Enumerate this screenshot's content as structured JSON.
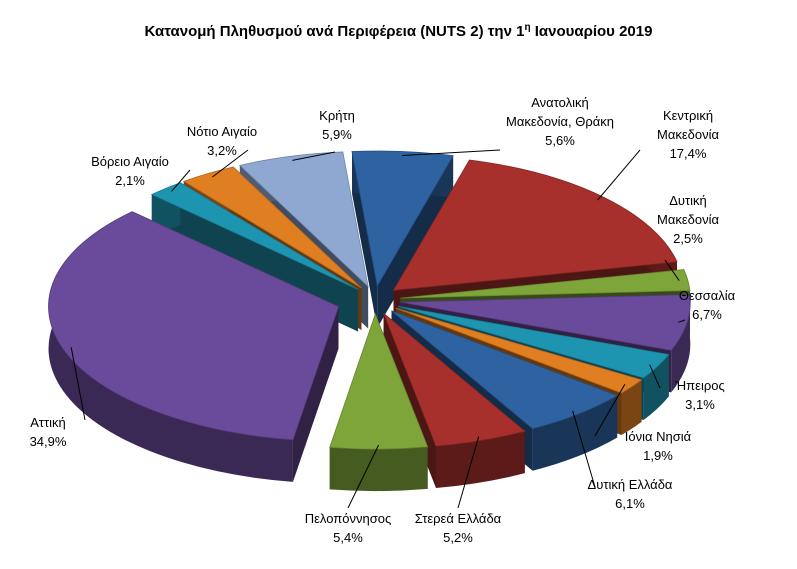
{
  "chart_data": {
    "type": "pie",
    "title": "Κατανομή Πληθυσμού ανά Περιφέρεια (NUTS 2) την 1",
    "title_sup": "η",
    "title_end": " Ιανουαρίου 2019",
    "slices": [
      {
        "label": [
          "Ανατολική",
          "Μακεδονία, Θράκη"
        ],
        "value": 5.6,
        "display": "5,6%",
        "color": "#2E62A1"
      },
      {
        "label": [
          "Κεντρική",
          "Μακεδονία"
        ],
        "value": 17.4,
        "display": "17,4%",
        "color": "#A8302C"
      },
      {
        "label": [
          "Δυτική",
          "Μακεδονία"
        ],
        "value": 2.5,
        "display": "2,5%",
        "color": "#7EA53A"
      },
      {
        "label": [
          "Θεσσαλία"
        ],
        "value": 6.7,
        "display": "6,7%",
        "color": "#6A4A9A"
      },
      {
        "label": [
          "Ήπειρος"
        ],
        "value": 3.1,
        "display": "3,1%",
        "color": "#1E95B0"
      },
      {
        "label": [
          "Ιόνια Νησιά"
        ],
        "value": 1.9,
        "display": "1,9%",
        "color": "#E07E22"
      },
      {
        "label": [
          "Δυτική Ελλάδα"
        ],
        "value": 6.1,
        "display": "6,1%",
        "color": "#2E62A1"
      },
      {
        "label": [
          "Στερεά Ελλάδα"
        ],
        "value": 5.2,
        "display": "5,2%",
        "color": "#A8302C"
      },
      {
        "label": [
          "Πελοπόννησος"
        ],
        "value": 5.4,
        "display": "5,4%",
        "color": "#7EA53A"
      },
      {
        "label": [
          "Αττική"
        ],
        "value": 34.9,
        "display": "34,9%",
        "color": "#6A4A9A"
      },
      {
        "label": [
          "Βόρειο Αιγαίο"
        ],
        "value": 2.1,
        "display": "2,1%",
        "color": "#1E95B0"
      },
      {
        "label": [
          "Νότιο Αιγαίο"
        ],
        "value": 3.2,
        "display": "3,2%",
        "color": "#E07E22"
      },
      {
        "label": [
          "Κρήτη"
        ],
        "value": 5.9,
        "display": "5,9%",
        "color": "#8FA8D2"
      }
    ]
  }
}
